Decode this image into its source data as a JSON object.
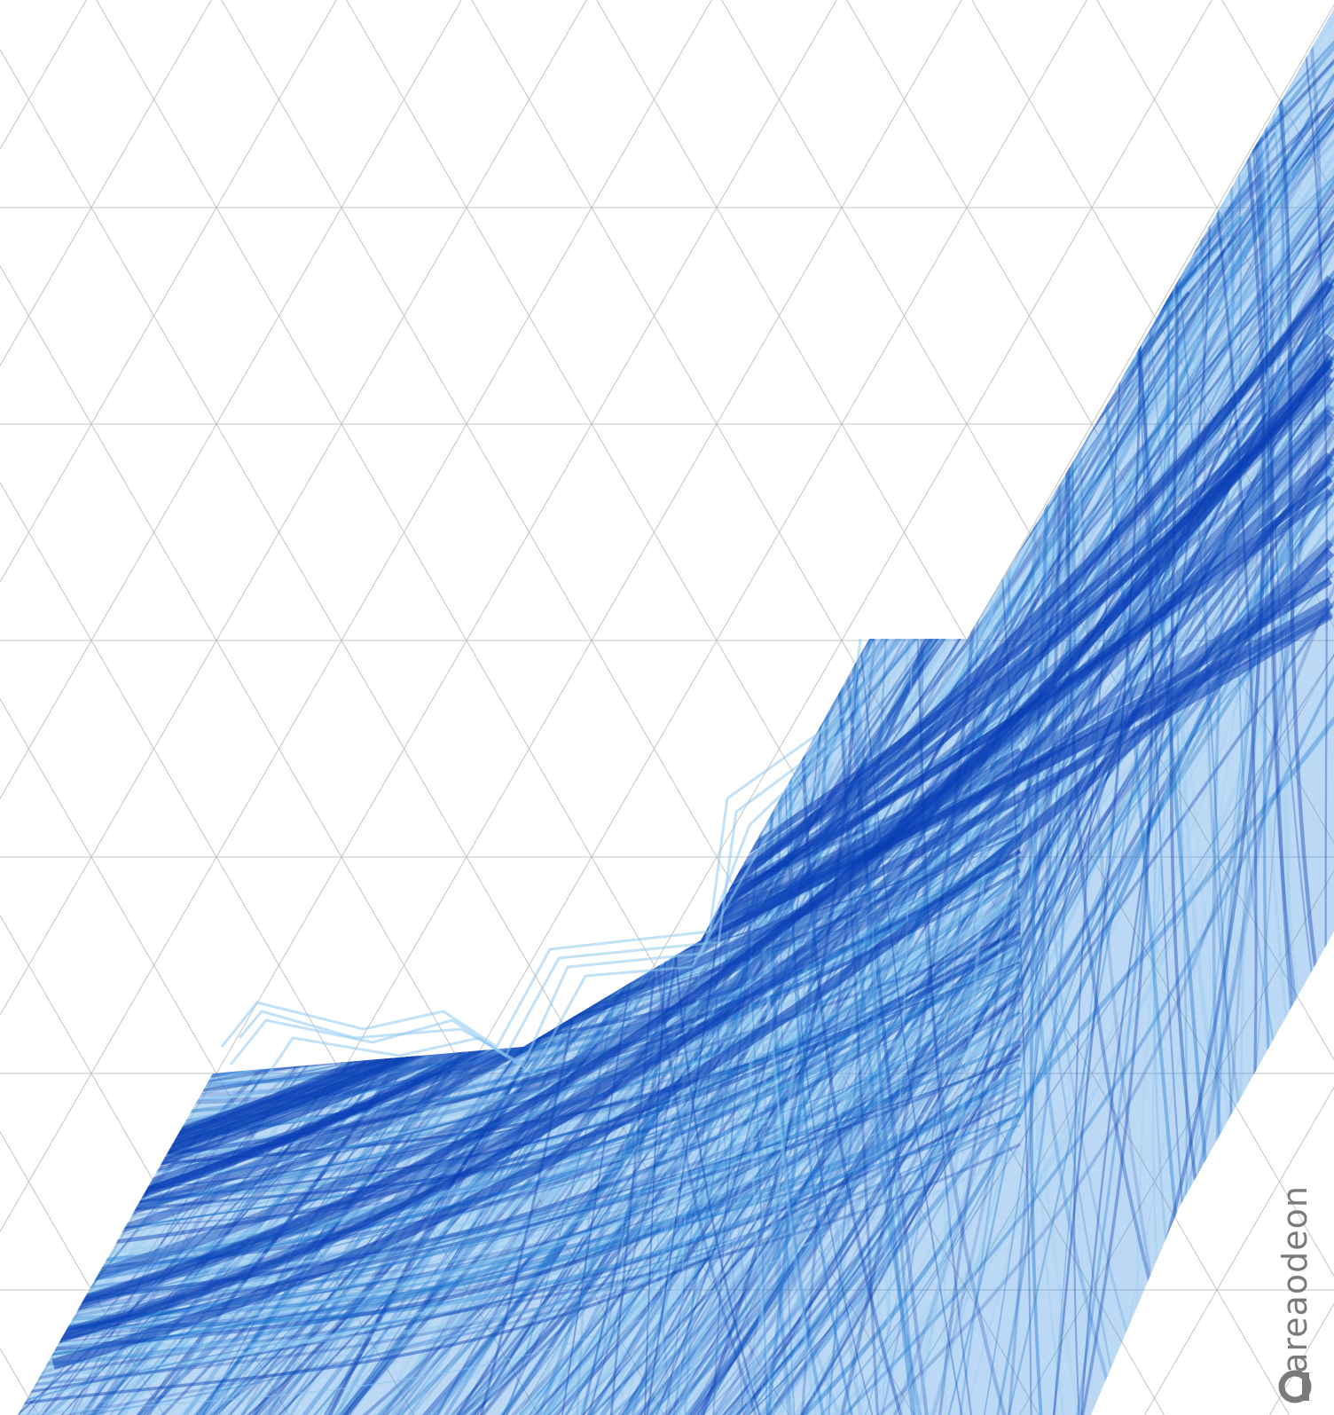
{
  "watermark": {
    "text": "areaodeon",
    "icon": "areaodeon-logo-icon",
    "color": "#7a7a7a"
  },
  "palette": {
    "background": "#ffffff",
    "grid": "#c4c4c4",
    "deep_blue": "#0a3fb5",
    "mid_blue": "#1f78d1",
    "light_blue": "#8cc8f0"
  }
}
